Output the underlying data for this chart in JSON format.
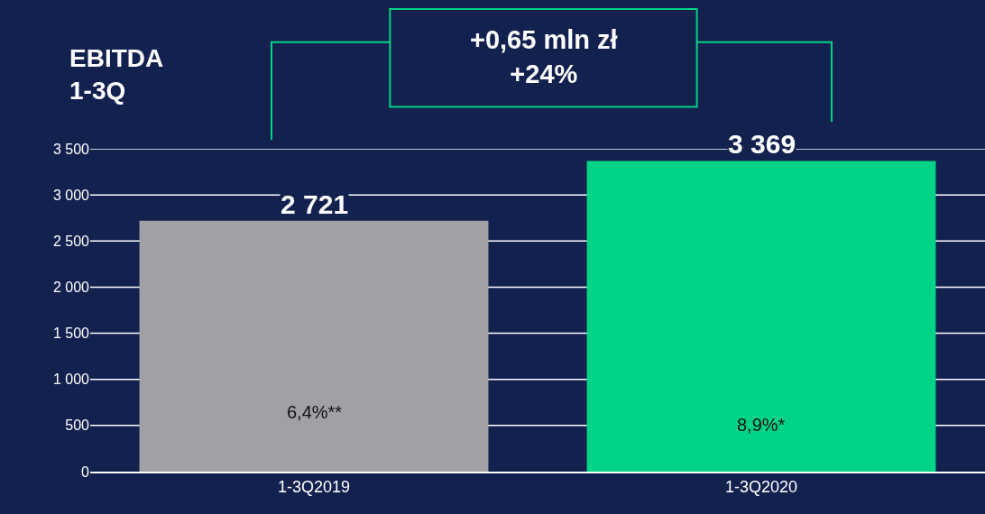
{
  "chart_data": {
    "type": "bar",
    "title": "EBITDA\n1-3Q",
    "categories": [
      "1-3Q2019",
      "1-3Q2020"
    ],
    "values": [
      2721,
      3369
    ],
    "colors": [
      "#a0a1a5",
      "#00d385"
    ],
    "value_labels": [
      "2 721",
      "3 369"
    ],
    "ylim": [
      0,
      3500
    ],
    "yticks": [
      {
        "value": 0,
        "label": "0"
      },
      {
        "value": 500,
        "label": "500"
      },
      {
        "value": 1000,
        "label": "1 000"
      },
      {
        "value": 1500,
        "label": "1 500"
      },
      {
        "value": 2000,
        "label": "2 000"
      },
      {
        "value": 2500,
        "label": "2 500"
      },
      {
        "value": 3000,
        "label": "3 000"
      },
      {
        "value": 3500,
        "label": "3 500"
      }
    ],
    "grid": "y",
    "legend": false,
    "annotations": [
      "+0,65 mln zł\n+24%",
      "6,4%**",
      "8,9%*"
    ]
  }
}
